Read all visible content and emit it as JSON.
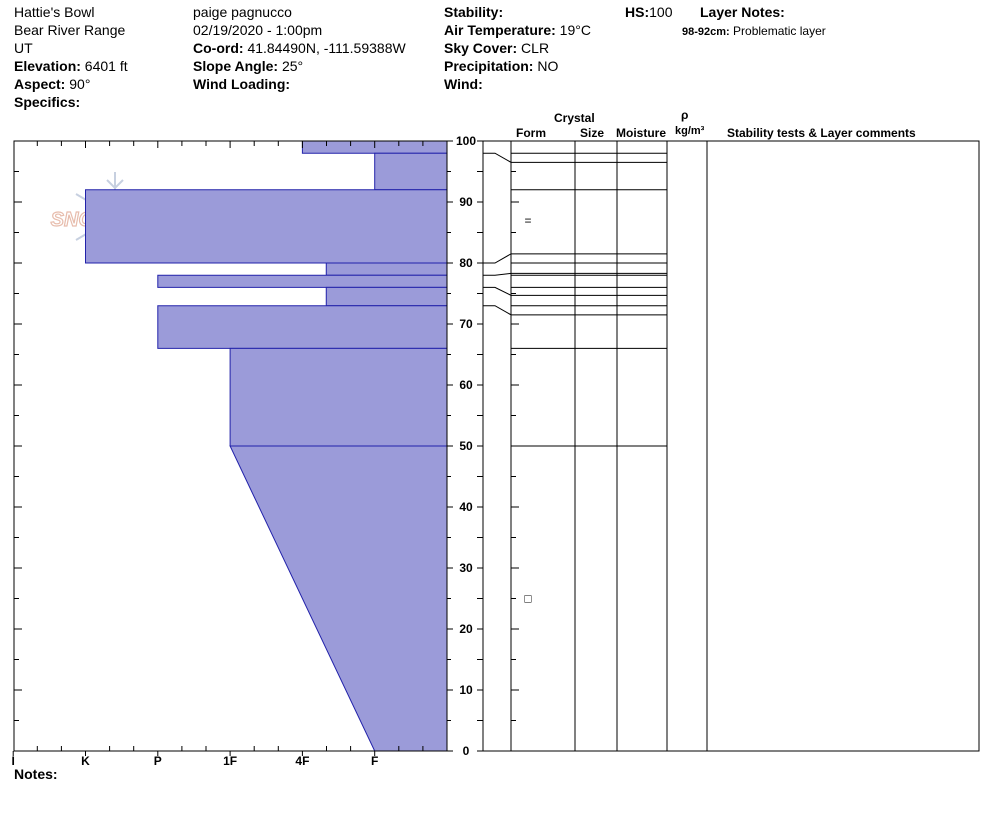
{
  "header": {
    "location": "Hattie's Bowl",
    "range": "Bear River Range",
    "state": "UT",
    "elevation_label": "Elevation:",
    "elevation_value": "6401 ft",
    "aspect_label": "Aspect:",
    "aspect_value": "90°",
    "specifics_label": "Specifics:",
    "observer": "paige pagnucco",
    "datetime": "02/19/2020 - 1:00pm",
    "coord_label": "Co-ord:",
    "coord_value": "41.84490N, -111.59388W",
    "slope_label": "Slope Angle:",
    "slope_value": "25°",
    "wind_loading_label": "Wind Loading:",
    "stability_label": "Stability:",
    "air_temp_label": "Air Temperature:",
    "air_temp_value": "19°C",
    "sky_label": "Sky Cover:",
    "sky_value": "CLR",
    "precip_label": "Precipitation:",
    "precip_value": "NO",
    "wind_label": "Wind:",
    "hs_label": "HS:",
    "hs_value": "100",
    "layer_notes_label": "Layer Notes:",
    "layer_note_depth": "98-92cm:",
    "layer_note_text": "Problematic layer"
  },
  "watermark": {
    "text": "SNOW PILOT"
  },
  "columns": {
    "crystal": "Crystal",
    "form": "Form",
    "size": "Size",
    "moisture": "Moisture",
    "rho": "ρ",
    "density_unit": "kg/m³",
    "stability_comments": "Stability tests & Layer comments"
  },
  "notes_label": "Notes:",
  "colors": {
    "fill": "#9b9bd9",
    "stroke": "#2222aa"
  },
  "chart_data": {
    "type": "area",
    "x_axis": {
      "categories": [
        "I",
        "K",
        "P",
        "1F",
        "4F",
        "F"
      ],
      "hardness_index": [
        6,
        5,
        4,
        3,
        2,
        1
      ]
    },
    "y_axis": {
      "ylim": [
        0,
        100
      ],
      "ticks": [
        0,
        10,
        20,
        30,
        40,
        50,
        60,
        70,
        80,
        90,
        100
      ]
    },
    "layers": [
      {
        "top": 100,
        "bottom": 98,
        "hardness": "4F",
        "index": 2
      },
      {
        "top": 98,
        "bottom": 92,
        "hardness": "F",
        "index": 1
      },
      {
        "top": 92,
        "bottom": 80,
        "hardness": "K",
        "index": 5
      },
      {
        "top": 80,
        "bottom": 78,
        "hardness": "4F-",
        "index": 1.67
      },
      {
        "top": 78,
        "bottom": 76,
        "hardness": "P",
        "index": 4
      },
      {
        "top": 76,
        "bottom": 73,
        "hardness": "4F-",
        "index": 1.67
      },
      {
        "top": 73,
        "bottom": 66,
        "hardness": "P",
        "index": 4
      },
      {
        "top": 66,
        "bottom": 50,
        "hardness": "1F",
        "index": 3
      },
      {
        "top": 50,
        "bottom": 0,
        "hardness": "1F-F",
        "index_top": 3,
        "index_bottom": 1
      }
    ],
    "layer_boundaries": [
      100,
      98,
      92,
      80,
      78,
      76,
      73,
      66,
      50,
      0
    ],
    "grain_forms": [
      {
        "depth": 87,
        "symbol": "="
      },
      {
        "depth": 25,
        "symbol": "□"
      }
    ]
  }
}
